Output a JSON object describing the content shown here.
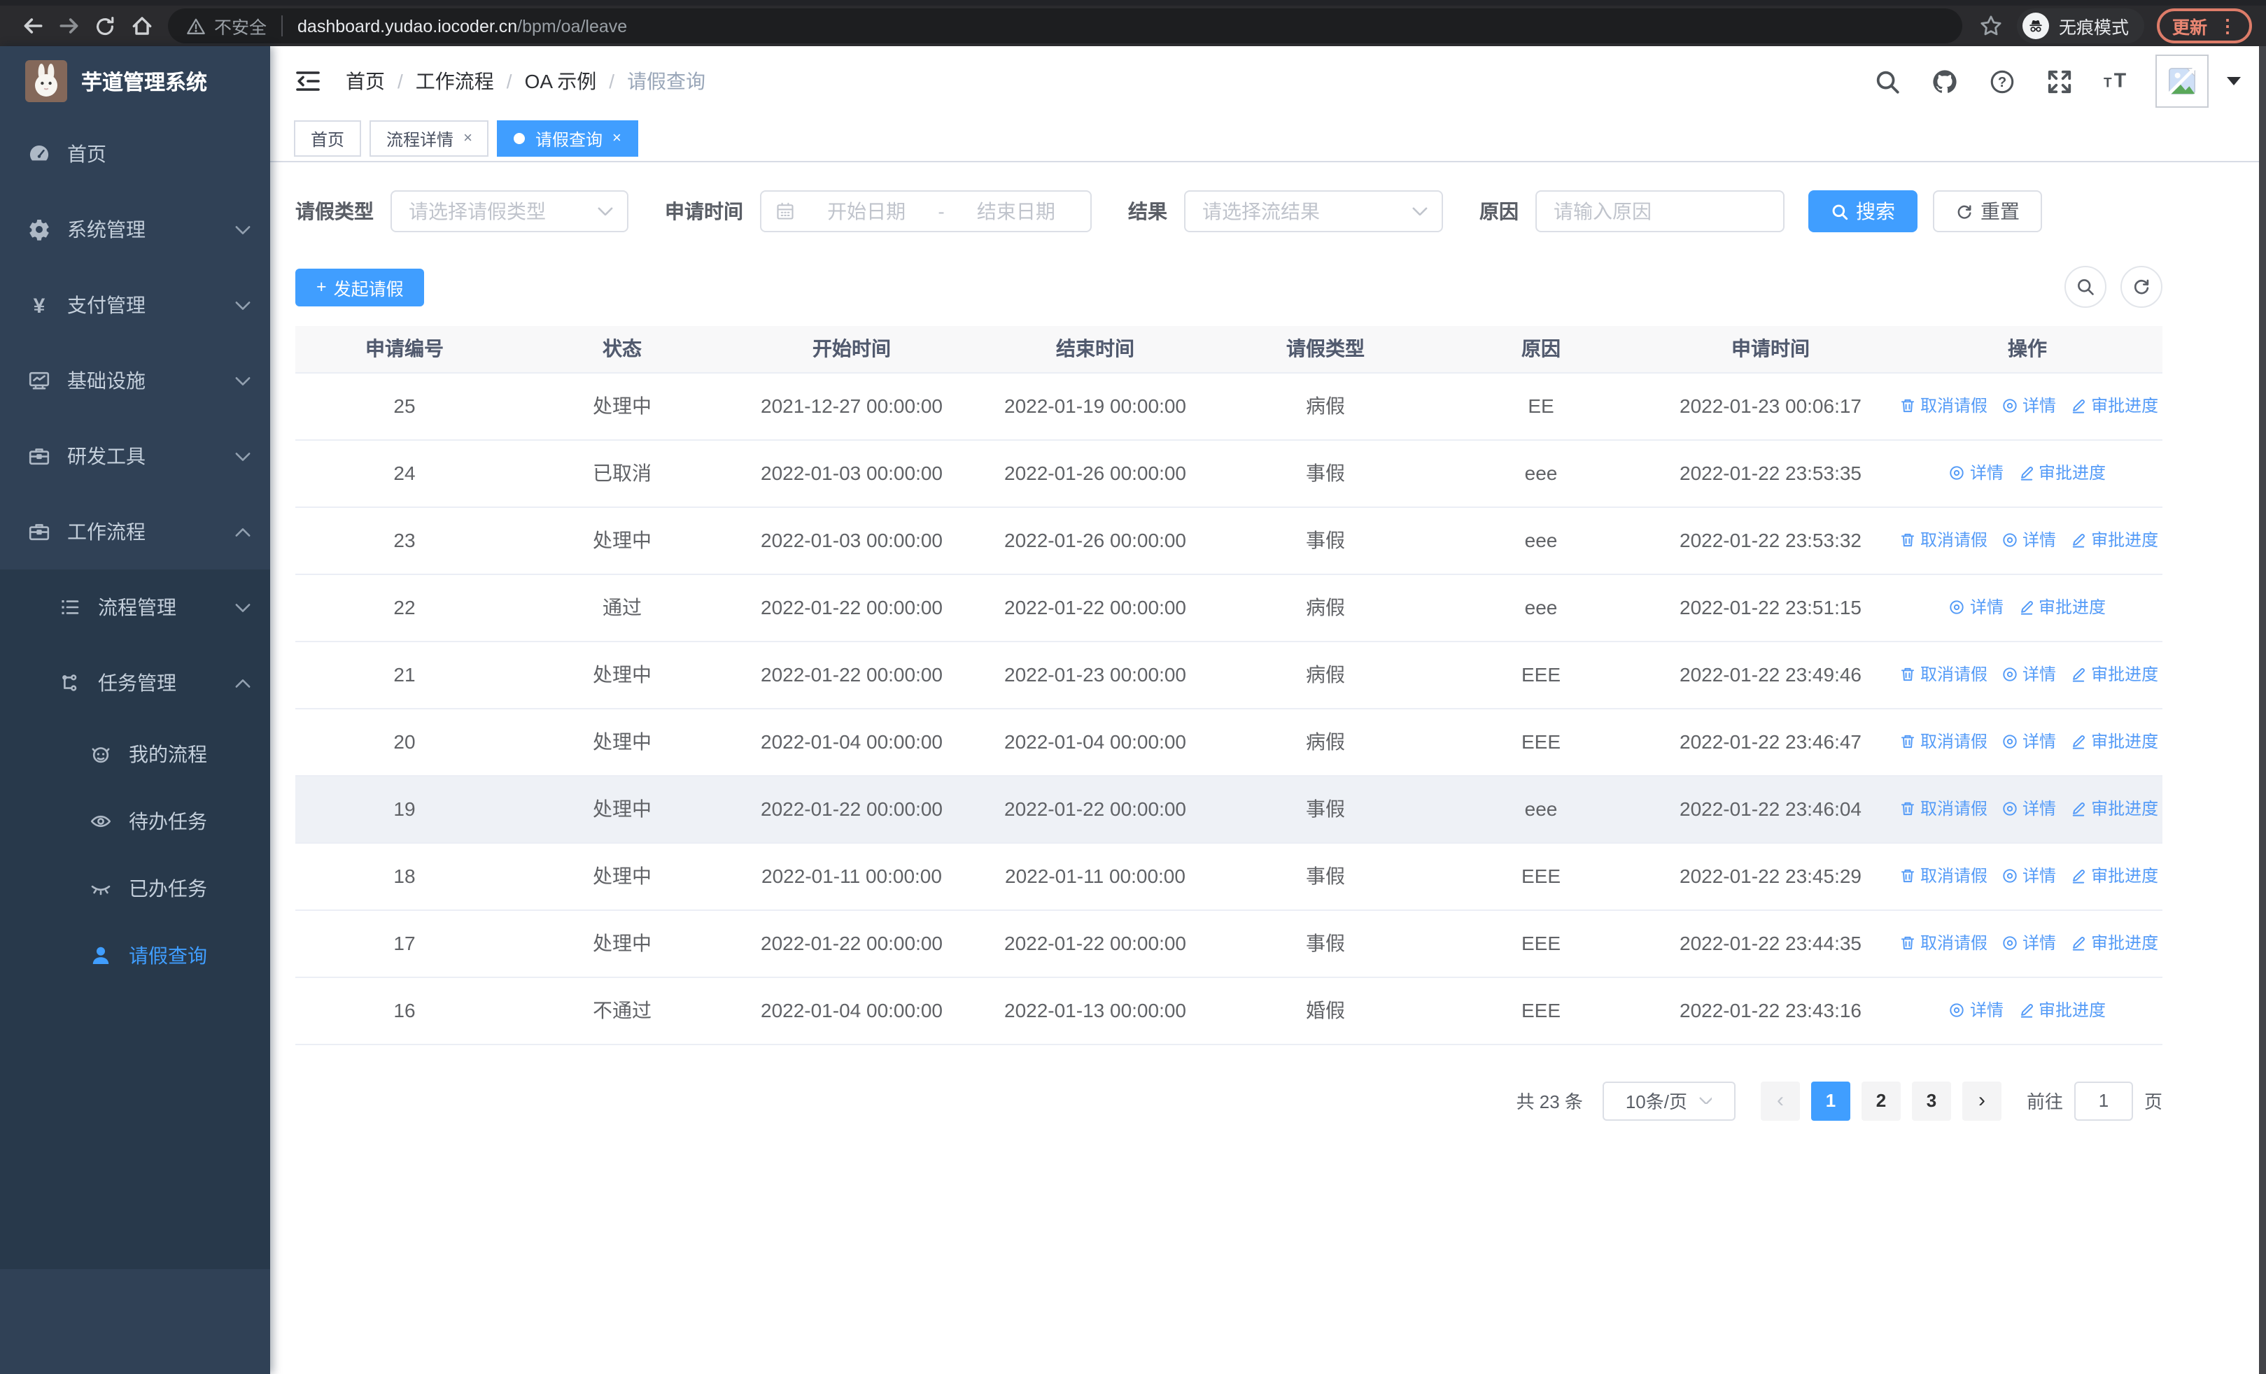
{
  "browser": {
    "security_text": "不安全",
    "url_domain": "dashboard.yudao.iocoder.cn",
    "url_path": "/bpm/oa/leave",
    "incognito_label": "无痕模式",
    "update_label": "更新"
  },
  "sidebar": {
    "title": "芋道管理系统",
    "menu_top": [
      {
        "key": "home",
        "label": "首页",
        "icon": "dashboard-icon",
        "arrow": null,
        "active": false
      },
      {
        "key": "system-management",
        "label": "系统管理",
        "icon": "gear-icon",
        "arrow": "down",
        "active": false
      },
      {
        "key": "payment-management",
        "label": "支付管理",
        "icon": "yen-icon",
        "arrow": "down",
        "active": false
      },
      {
        "key": "infrastructure",
        "label": "基础设施",
        "icon": "monitor-icon",
        "arrow": "down",
        "active": false
      },
      {
        "key": "dev-tools",
        "label": "研发工具",
        "icon": "toolbox-icon",
        "arrow": "down",
        "active": false
      },
      {
        "key": "workflow",
        "label": "工作流程",
        "icon": "briefcase-icon",
        "arrow": "up",
        "active": false
      }
    ],
    "menu_sub": [
      {
        "key": "process-management",
        "label": "流程管理",
        "icon": "list-icon",
        "arrow": "down",
        "level": 1,
        "active": false
      },
      {
        "key": "task-management",
        "label": "任务管理",
        "icon": "flow-icon",
        "arrow": "up",
        "level": 1,
        "active": false
      },
      {
        "key": "my-processes",
        "label": "我的流程",
        "icon": "robot-icon",
        "arrow": null,
        "level": 2,
        "active": false
      },
      {
        "key": "todo-tasks",
        "label": "待办任务",
        "icon": "eye-icon",
        "arrow": null,
        "level": 2,
        "active": false
      },
      {
        "key": "done-tasks",
        "label": "已办任务",
        "icon": "eye-closed-icon",
        "arrow": null,
        "level": 2,
        "active": false
      },
      {
        "key": "leave-query",
        "label": "请假查询",
        "icon": "user-icon",
        "arrow": null,
        "level": 2,
        "active": true
      }
    ]
  },
  "breadcrumb": [
    "首页",
    "工作流程",
    "OA 示例",
    "请假查询"
  ],
  "breadcrumb_sep": "/",
  "tabs": [
    {
      "label": "首页",
      "closable": false,
      "active": false
    },
    {
      "label": "流程详情",
      "closable": true,
      "active": false
    },
    {
      "label": "请假查询",
      "closable": true,
      "active": true
    }
  ],
  "filters": {
    "leave_type": {
      "label": "请假类型",
      "placeholder": "请选择请假类型"
    },
    "apply_time": {
      "label": "申请时间",
      "start_placeholder": "开始日期",
      "separator": "-",
      "end_placeholder": "结束日期"
    },
    "result": {
      "label": "结果",
      "placeholder": "请选择流结果"
    },
    "reason": {
      "label": "原因",
      "placeholder": "请输入原因"
    },
    "search_label": "搜索",
    "reset_label": "重置"
  },
  "toolbar": {
    "create_label": "发起请假",
    "plus": "+"
  },
  "table": {
    "columns": [
      "申请编号",
      "状态",
      "开始时间",
      "结束时间",
      "请假类型",
      "原因",
      "申请时间",
      "操作"
    ],
    "action_labels": {
      "cancel": "取消请假",
      "detail": "详情",
      "progress": "审批进度"
    },
    "rows": [
      {
        "id": "25",
        "status": "处理中",
        "start_time": "2021-12-27 00:00:00",
        "end_time": "2022-01-19 00:00:00",
        "leave_type": "病假",
        "reason": "EE",
        "apply_time": "2022-01-23 00:06:17",
        "actions": [
          "cancel",
          "detail",
          "progress"
        ],
        "highlight": false
      },
      {
        "id": "24",
        "status": "已取消",
        "start_time": "2022-01-03 00:00:00",
        "end_time": "2022-01-26 00:00:00",
        "leave_type": "事假",
        "reason": "eee",
        "apply_time": "2022-01-22 23:53:35",
        "actions": [
          "detail",
          "progress"
        ],
        "highlight": false
      },
      {
        "id": "23",
        "status": "处理中",
        "start_time": "2022-01-03 00:00:00",
        "end_time": "2022-01-26 00:00:00",
        "leave_type": "事假",
        "reason": "eee",
        "apply_time": "2022-01-22 23:53:32",
        "actions": [
          "cancel",
          "detail",
          "progress"
        ],
        "highlight": false
      },
      {
        "id": "22",
        "status": "通过",
        "start_time": "2022-01-22 00:00:00",
        "end_time": "2022-01-22 00:00:00",
        "leave_type": "病假",
        "reason": "eee",
        "apply_time": "2022-01-22 23:51:15",
        "actions": [
          "detail",
          "progress"
        ],
        "highlight": false
      },
      {
        "id": "21",
        "status": "处理中",
        "start_time": "2022-01-22 00:00:00",
        "end_time": "2022-01-23 00:00:00",
        "leave_type": "病假",
        "reason": "EEE",
        "apply_time": "2022-01-22 23:49:46",
        "actions": [
          "cancel",
          "detail",
          "progress"
        ],
        "highlight": false
      },
      {
        "id": "20",
        "status": "处理中",
        "start_time": "2022-01-04 00:00:00",
        "end_time": "2022-01-04 00:00:00",
        "leave_type": "病假",
        "reason": "EEE",
        "apply_time": "2022-01-22 23:46:47",
        "actions": [
          "cancel",
          "detail",
          "progress"
        ],
        "highlight": false
      },
      {
        "id": "19",
        "status": "处理中",
        "start_time": "2022-01-22 00:00:00",
        "end_time": "2022-01-22 00:00:00",
        "leave_type": "事假",
        "reason": "eee",
        "apply_time": "2022-01-22 23:46:04",
        "actions": [
          "cancel",
          "detail",
          "progress"
        ],
        "highlight": true
      },
      {
        "id": "18",
        "status": "处理中",
        "start_time": "2022-01-11 00:00:00",
        "end_time": "2022-01-11 00:00:00",
        "leave_type": "事假",
        "reason": "EEE",
        "apply_time": "2022-01-22 23:45:29",
        "actions": [
          "cancel",
          "detail",
          "progress"
        ],
        "highlight": false
      },
      {
        "id": "17",
        "status": "处理中",
        "start_time": "2022-01-22 00:00:00",
        "end_time": "2022-01-22 00:00:00",
        "leave_type": "事假",
        "reason": "EEE",
        "apply_time": "2022-01-22 23:44:35",
        "actions": [
          "cancel",
          "detail",
          "progress"
        ],
        "highlight": false
      },
      {
        "id": "16",
        "status": "不通过",
        "start_time": "2022-01-04 00:00:00",
        "end_time": "2022-01-13 00:00:00",
        "leave_type": "婚假",
        "reason": "EEE",
        "apply_time": "2022-01-22 23:43:16",
        "actions": [
          "detail",
          "progress"
        ],
        "highlight": false
      }
    ]
  },
  "pagination": {
    "total_text": "共 23 条",
    "page_size": "10条/页",
    "pages": [
      "1",
      "2",
      "3"
    ],
    "active_page": "1",
    "goto_label": "前往",
    "goto_value": "1",
    "page_unit": "页"
  },
  "colors": {
    "primary": "#409eff",
    "link": "#549bf7",
    "sidebar": "#304156",
    "sidebar_sub": "#28394b",
    "update_accent": "#e98672"
  }
}
